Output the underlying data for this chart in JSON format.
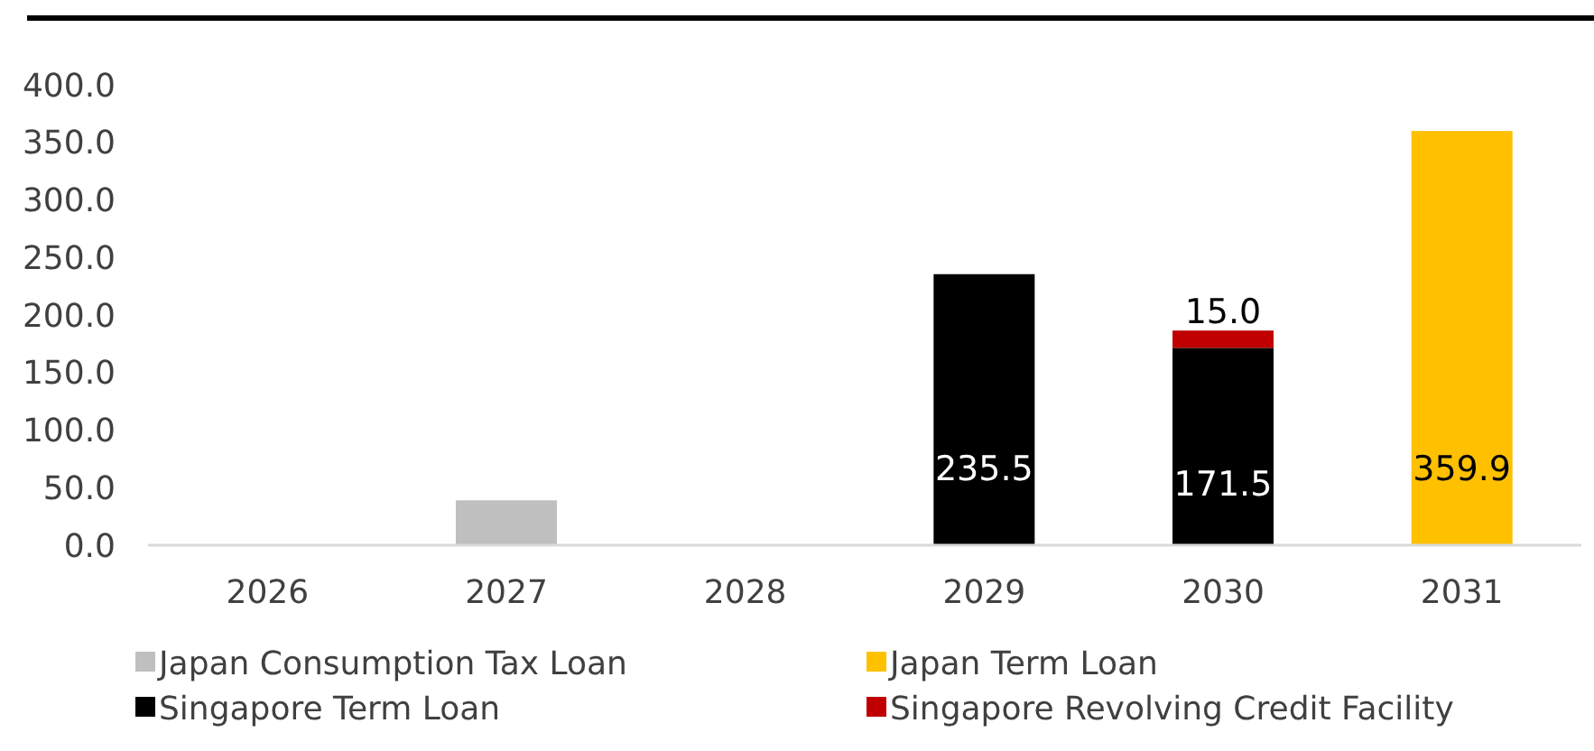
{
  "chart_data": {
    "type": "bar",
    "stacked": true,
    "categories": [
      "2026",
      "2027",
      "2028",
      "2029",
      "2030",
      "2031"
    ],
    "series": [
      {
        "name": "Japan Consumption Tax Loan",
        "color": "#bfbfbf",
        "values": [
          null,
          39,
          null,
          null,
          null,
          null
        ],
        "value_labels": [
          null,
          null,
          null,
          null,
          null,
          null
        ]
      },
      {
        "name": "Japan Term Loan",
        "color": "#ffc000",
        "values": [
          null,
          null,
          null,
          null,
          null,
          359.9
        ],
        "value_labels": [
          null,
          null,
          null,
          null,
          null,
          "359.9"
        ]
      },
      {
        "name": "Singapore Term Loan",
        "color": "#000000",
        "values": [
          null,
          null,
          null,
          235.5,
          171.5,
          null
        ],
        "value_labels": [
          null,
          null,
          null,
          "235.5",
          "171.5",
          null
        ]
      },
      {
        "name": "Singapore Revolving Credit Facility",
        "color": "#c00000",
        "values": [
          null,
          null,
          null,
          null,
          15.0,
          null
        ],
        "value_labels": [
          null,
          null,
          null,
          null,
          "15.0",
          null
        ]
      }
    ],
    "ylim": [
      0,
      400
    ],
    "yticks": [
      {
        "value": 0,
        "label": "0.0"
      },
      {
        "value": 50,
        "label": "50.0"
      },
      {
        "value": 100,
        "label": "100.0"
      },
      {
        "value": 150,
        "label": "150.0"
      },
      {
        "value": 200,
        "label": "200.0"
      },
      {
        "value": 250,
        "label": "250.0"
      },
      {
        "value": 300,
        "label": "300.0"
      },
      {
        "value": 350,
        "label": "350.0"
      },
      {
        "value": 400,
        "label": "400.0"
      }
    ],
    "grid": false,
    "legend": "bottom"
  }
}
